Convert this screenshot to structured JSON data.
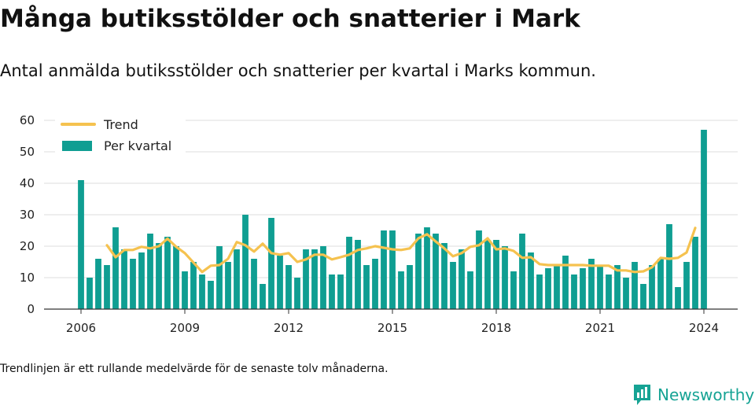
{
  "title": "Många butiksstölder och snatterier i Mark",
  "subtitle": "Antal anmälda butiksstölder och snatterier per kvartal i Marks kommun.",
  "footnote": "Trendlinjen är ett rullande medelvärde för de senaste tolv månaderna.",
  "brand": {
    "name": "Newsworthy",
    "icon": "newsworthy-logo-icon",
    "color": "#16a394"
  },
  "colors": {
    "bar": "#0f9e92",
    "trend": "#f5c24f",
    "grid": "#dddddd",
    "axis": "#333333"
  },
  "chart_data": {
    "type": "bar",
    "x_unit": "quarter",
    "x_start": "2006-Q1",
    "x_ticks": [
      "2006",
      "2009",
      "2012",
      "2015",
      "2018",
      "2021",
      "2024"
    ],
    "y_ticks": [
      "0",
      "10",
      "20",
      "30",
      "40",
      "50",
      "60"
    ],
    "ylim": [
      0,
      60
    ],
    "grid": true,
    "legend_position": "top-left",
    "legend": [
      "Trend",
      "Per kvartal"
    ],
    "series": [
      {
        "name": "Per kvartal",
        "type": "bar",
        "values": [
          41,
          10,
          16,
          14,
          26,
          19,
          16,
          18,
          24,
          21,
          23,
          20,
          12,
          15,
          11,
          9,
          20,
          15,
          19,
          30,
          16,
          8,
          29,
          17,
          14,
          10,
          19,
          19,
          20,
          11,
          11,
          23,
          22,
          14,
          16,
          25,
          25,
          12,
          14,
          24,
          26,
          24,
          21,
          15,
          19,
          12,
          25,
          22,
          22,
          20,
          12,
          24,
          18,
          11,
          13,
          14,
          17,
          11,
          13,
          16,
          14,
          11,
          14,
          10,
          15,
          8,
          14,
          16,
          27,
          7,
          15,
          23,
          57
        ]
      },
      {
        "name": "Trend",
        "type": "line",
        "start_index": 3,
        "values": [
          20.3,
          16.5,
          18.8,
          18.8,
          19.8,
          19.3,
          20.0,
          22.4,
          19.8,
          17.8,
          14.8,
          11.8,
          13.8,
          14.0,
          16.0,
          21.3,
          20.3,
          18.3,
          20.8,
          17.8,
          17.3,
          17.8,
          15.0,
          15.8,
          17.3,
          17.3,
          15.8,
          16.5,
          17.3,
          18.8,
          19.3,
          20.0,
          19.5,
          19.0,
          18.8,
          19.3,
          22.5,
          23.8,
          21.5,
          19.3,
          16.8,
          17.8,
          19.8,
          20.3,
          22.5,
          19.0,
          19.3,
          18.5,
          16.3,
          16.5,
          14.3,
          14.0,
          14.0,
          14.0,
          14.0,
          14.0,
          13.8,
          13.8,
          13.8,
          12.3,
          12.3,
          11.8,
          12.0,
          13.3,
          16.3,
          16.0,
          16.3,
          18.0,
          25.8
        ]
      }
    ]
  }
}
